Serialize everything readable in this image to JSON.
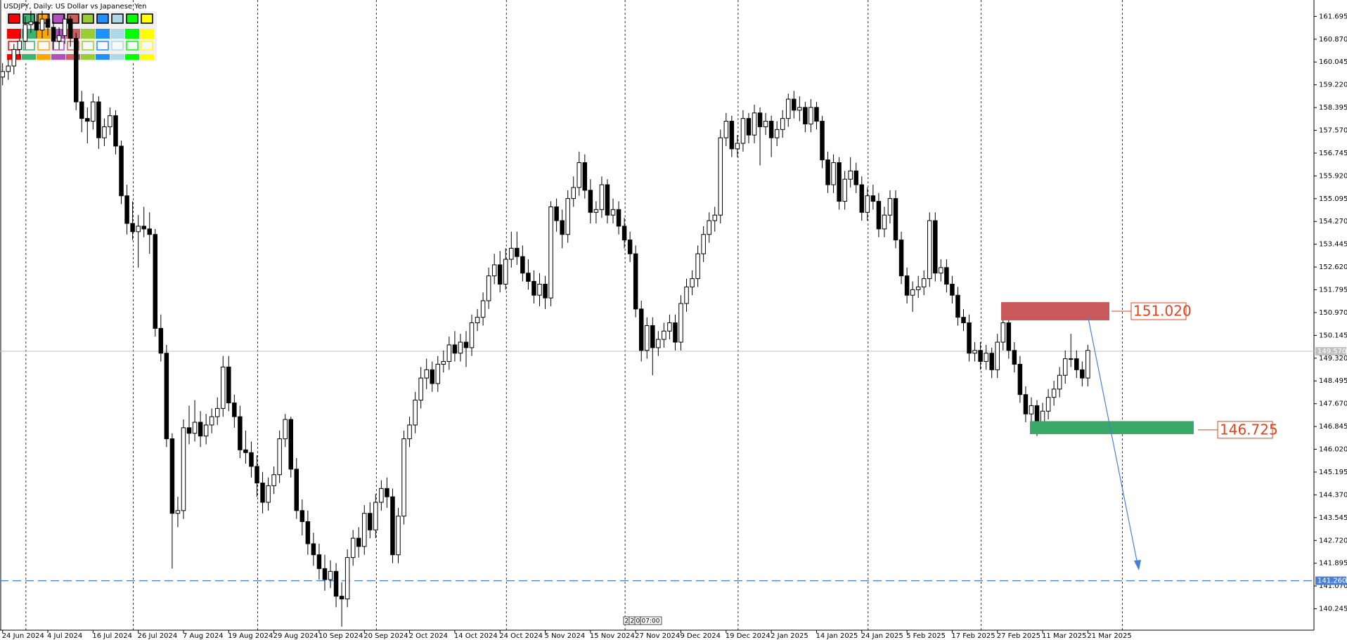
{
  "chart_data": {
    "type": "candlestick",
    "title": "USDJPY, Daily:  US Dollar vs Japanese Yen",
    "up_color": "#ffffff",
    "down_color": "#000000",
    "outline_color": "#000000",
    "ylim": [
      139.47,
      162.29
    ],
    "yticks": [
      161.695,
      {
        "value": 160.87,
        "label": "160.870"
      },
      160.045,
      {
        "value": 159.22,
        "label": "159.220"
      },
      158.395,
      {
        "value": 157.57,
        "label": "157.570"
      },
      156.745,
      {
        "value": 155.92,
        "label": "155.920"
      },
      155.095,
      {
        "value": 154.27,
        "label": "154.270"
      },
      153.445,
      {
        "value": 152.62,
        "label": "152.620"
      },
      151.795,
      {
        "value": 150.97,
        "label": "150.970"
      },
      150.145,
      {
        "value": 149.32,
        "label": "149.320"
      },
      148.495,
      {
        "value": 147.67,
        "label": "147.670"
      },
      146.845,
      {
        "value": 146.02,
        "label": "146.020"
      },
      145.195,
      {
        "value": 144.37,
        "label": "144.370"
      },
      143.545,
      {
        "value": 142.72,
        "label": "142.720"
      },
      141.895,
      {
        "value": 141.07,
        "label": "141.070"
      },
      140.245
    ],
    "categories": [
      "24 Jun 2024",
      null,
      null,
      null,
      null,
      null,
      null,
      null,
      "4 Jul 2024",
      null,
      null,
      null,
      null,
      null,
      null,
      null,
      "16 Jul 2024",
      null,
      null,
      null,
      null,
      null,
      null,
      null,
      "26 Jul 2024",
      null,
      null,
      null,
      null,
      null,
      null,
      null,
      "7 Aug 2024",
      null,
      null,
      null,
      null,
      null,
      null,
      null,
      "19 Aug 2024",
      null,
      null,
      null,
      null,
      null,
      null,
      null,
      "29 Aug 2024",
      null,
      null,
      null,
      null,
      null,
      null,
      null,
      "10 Sep 2024",
      null,
      null,
      null,
      null,
      null,
      null,
      null,
      "20 Sep 2024",
      null,
      null,
      null,
      null,
      null,
      null,
      null,
      "2 Oct 2024",
      null,
      null,
      null,
      null,
      null,
      null,
      null,
      "14 Oct 2024",
      null,
      null,
      null,
      null,
      null,
      null,
      null,
      "24 Oct 2024",
      null,
      null,
      null,
      null,
      null,
      null,
      null,
      "5 Nov 2024",
      null,
      null,
      null,
      null,
      null,
      null,
      null,
      "15 Nov 2024",
      null,
      null,
      null,
      null,
      null,
      null,
      null,
      "27 Nov 2024",
      null,
      null,
      null,
      null,
      null,
      null,
      null,
      "9 Dec 2024",
      null,
      null,
      null,
      null,
      null,
      null,
      null,
      "19 Dec 2024",
      null,
      null,
      null,
      null,
      null,
      null,
      null,
      "2 Jan 2025",
      null,
      null,
      null,
      null,
      null,
      null,
      null,
      "14 Jan 2025",
      null,
      null,
      null,
      null,
      null,
      null,
      null,
      "24 Jan 2025",
      null,
      null,
      null,
      null,
      null,
      null,
      null,
      "5 Feb 2025",
      null,
      null,
      null,
      null,
      null,
      null,
      null,
      "17 Feb 2025",
      null,
      null,
      null,
      null,
      null,
      null,
      null,
      "27 Feb 2025",
      null,
      null,
      null,
      null,
      null,
      null,
      null,
      "11 Mar 2025",
      null,
      null,
      null,
      null,
      null,
      null,
      null,
      "21 Mar 2025"
    ],
    "ohlc": [
      [
        159.5,
        160.0,
        159.2,
        159.7
      ],
      [
        159.7,
        160.2,
        159.4,
        159.9
      ],
      [
        159.9,
        160.7,
        159.6,
        160.5
      ],
      [
        160.5,
        161.1,
        160.2,
        160.8
      ],
      [
        160.8,
        161.7,
        160.5,
        161.4
      ],
      [
        161.4,
        161.9,
        161.1,
        161.5
      ],
      [
        161.5,
        161.8,
        160.9,
        161.2
      ],
      [
        161.2,
        161.9,
        160.9,
        161.6
      ],
      [
        161.6,
        161.8,
        161.0,
        161.3
      ],
      [
        161.3,
        161.5,
        160.5,
        160.8
      ],
      [
        160.8,
        161.3,
        160.5,
        161.0
      ],
      [
        161.0,
        161.8,
        160.7,
        161.6
      ],
      [
        161.6,
        161.7,
        160.6,
        160.9
      ],
      [
        160.9,
        161.1,
        158.3,
        158.6
      ],
      [
        158.6,
        159.0,
        157.5,
        158.0
      ],
      [
        158.0,
        158.4,
        157.1,
        157.9
      ],
      [
        157.9,
        158.9,
        157.6,
        158.6
      ],
      [
        158.6,
        158.8,
        156.9,
        157.3
      ],
      [
        157.3,
        158.0,
        157.0,
        157.7
      ],
      [
        157.7,
        158.4,
        157.4,
        158.1
      ],
      [
        158.1,
        158.3,
        156.7,
        157.0
      ],
      [
        157.0,
        157.2,
        154.9,
        155.2
      ],
      [
        155.2,
        155.6,
        153.8,
        154.2
      ],
      [
        154.2,
        155.0,
        153.6,
        153.9
      ],
      [
        153.9,
        154.5,
        152.6,
        154.1
      ],
      [
        154.1,
        154.8,
        153.7,
        154.0
      ],
      [
        154.0,
        154.6,
        153.1,
        153.8
      ],
      [
        153.8,
        154.0,
        150.1,
        150.4
      ],
      [
        150.4,
        150.9,
        149.2,
        149.5
      ],
      [
        149.5,
        149.8,
        146.1,
        146.4
      ],
      [
        146.4,
        146.6,
        141.7,
        143.7
      ],
      [
        143.7,
        144.3,
        143.2,
        143.8
      ],
      [
        143.8,
        147.1,
        143.5,
        146.8
      ],
      [
        146.8,
        147.6,
        146.2,
        146.6
      ],
      [
        146.6,
        147.8,
        146.3,
        147.0
      ],
      [
        147.0,
        147.4,
        146.1,
        146.5
      ],
      [
        146.5,
        147.3,
        146.2,
        146.9
      ],
      [
        146.9,
        147.5,
        146.6,
        147.2
      ],
      [
        147.2,
        147.9,
        146.9,
        147.5
      ],
      [
        147.5,
        149.4,
        147.2,
        149.0
      ],
      [
        149.0,
        149.4,
        147.4,
        147.7
      ],
      [
        147.7,
        148.0,
        146.8,
        147.2
      ],
      [
        147.2,
        147.6,
        145.7,
        146.0
      ],
      [
        146.0,
        146.7,
        145.5,
        145.9
      ],
      [
        145.9,
        146.3,
        145.0,
        145.4
      ],
      [
        145.4,
        145.8,
        144.3,
        144.8
      ],
      [
        144.8,
        145.2,
        143.7,
        144.1
      ],
      [
        144.1,
        145.0,
        143.8,
        144.7
      ],
      [
        144.7,
        145.4,
        144.4,
        145.1
      ],
      [
        145.1,
        146.7,
        144.8,
        146.4
      ],
      [
        146.4,
        147.3,
        146.1,
        147.1
      ],
      [
        147.1,
        147.2,
        145.0,
        145.3
      ],
      [
        145.3,
        145.7,
        143.5,
        143.8
      ],
      [
        143.8,
        144.2,
        142.9,
        143.4
      ],
      [
        143.4,
        143.8,
        142.2,
        142.6
      ],
      [
        142.6,
        143.0,
        141.8,
        142.2
      ],
      [
        142.2,
        142.6,
        141.3,
        141.7
      ],
      [
        141.7,
        142.2,
        140.9,
        141.3
      ],
      [
        141.3,
        142.0,
        141.0,
        141.6
      ],
      [
        141.6,
        141.9,
        140.3,
        140.7
      ],
      [
        140.7,
        141.2,
        139.6,
        140.6
      ],
      [
        140.6,
        142.4,
        140.3,
        142.1
      ],
      [
        142.1,
        143.1,
        141.8,
        142.8
      ],
      [
        142.8,
        143.2,
        142.1,
        142.5
      ],
      [
        142.5,
        144.0,
        142.2,
        143.7
      ],
      [
        143.7,
        144.1,
        142.8,
        143.1
      ],
      [
        143.1,
        144.4,
        142.8,
        144.1
      ],
      [
        144.1,
        144.9,
        143.8,
        144.6
      ],
      [
        144.6,
        145.0,
        143.9,
        144.3
      ],
      [
        144.3,
        144.6,
        141.9,
        142.2
      ],
      [
        142.2,
        143.9,
        141.9,
        143.6
      ],
      [
        143.6,
        146.7,
        143.3,
        146.4
      ],
      [
        146.4,
        147.2,
        146.1,
        146.9
      ],
      [
        146.9,
        148.1,
        146.6,
        147.8
      ],
      [
        147.8,
        149.0,
        147.5,
        148.6
      ],
      [
        148.6,
        149.3,
        148.2,
        148.9
      ],
      [
        148.9,
        149.2,
        148.1,
        148.4
      ],
      [
        148.4,
        149.4,
        148.1,
        149.1
      ],
      [
        149.1,
        149.6,
        148.8,
        149.2
      ],
      [
        149.2,
        150.1,
        148.9,
        149.8
      ],
      [
        149.8,
        150.3,
        149.2,
        149.5
      ],
      [
        149.5,
        150.2,
        149.2,
        149.9
      ],
      [
        149.9,
        150.3,
        149.0,
        149.7
      ],
      [
        149.7,
        150.9,
        149.4,
        150.6
      ],
      [
        150.6,
        151.1,
        150.3,
        150.8
      ],
      [
        150.8,
        151.7,
        150.5,
        151.4
      ],
      [
        151.4,
        152.6,
        151.1,
        152.3
      ],
      [
        152.3,
        153.1,
        152.0,
        152.7
      ],
      [
        152.7,
        153.2,
        151.7,
        152.0
      ],
      [
        152.0,
        153.3,
        151.8,
        152.9
      ],
      [
        152.9,
        153.9,
        152.6,
        153.3
      ],
      [
        153.3,
        153.9,
        152.7,
        153.0
      ],
      [
        153.0,
        153.4,
        152.1,
        152.4
      ],
      [
        152.4,
        152.9,
        151.8,
        152.1
      ],
      [
        152.1,
        152.5,
        151.3,
        151.6
      ],
      [
        151.6,
        152.4,
        151.2,
        152.0
      ],
      [
        152.0,
        152.3,
        151.1,
        151.5
      ],
      [
        151.5,
        155.0,
        151.2,
        154.8
      ],
      [
        154.8,
        155.1,
        153.9,
        154.3
      ],
      [
        154.3,
        154.7,
        153.3,
        153.8
      ],
      [
        153.8,
        155.4,
        153.5,
        155.1
      ],
      [
        155.1,
        155.9,
        154.8,
        155.5
      ],
      [
        155.5,
        156.8,
        155.2,
        156.4
      ],
      [
        156.4,
        156.7,
        155.1,
        155.4
      ],
      [
        155.4,
        155.8,
        154.2,
        154.6
      ],
      [
        154.6,
        155.0,
        154.2,
        154.7
      ],
      [
        154.7,
        155.9,
        154.4,
        155.6
      ],
      [
        155.6,
        155.8,
        154.2,
        154.5
      ],
      [
        154.5,
        155.1,
        154.2,
        154.7
      ],
      [
        154.7,
        155.0,
        153.8,
        154.1
      ],
      [
        154.1,
        154.4,
        153.3,
        153.6
      ],
      [
        153.6,
        153.9,
        152.8,
        153.1
      ],
      [
        153.1,
        153.4,
        150.8,
        151.1
      ],
      [
        151.1,
        151.4,
        149.2,
        149.6
      ],
      [
        149.6,
        150.8,
        149.3,
        150.5
      ],
      [
        150.5,
        150.8,
        148.7,
        149.7
      ],
      [
        149.7,
        150.3,
        149.4,
        150.0
      ],
      [
        150.0,
        150.6,
        149.7,
        150.3
      ],
      [
        150.3,
        150.9,
        150.0,
        150.6
      ],
      [
        150.6,
        150.9,
        149.6,
        149.9
      ],
      [
        149.9,
        151.6,
        149.6,
        151.3
      ],
      [
        151.3,
        152.2,
        151.0,
        151.9
      ],
      [
        151.9,
        152.5,
        151.6,
        152.2
      ],
      [
        152.2,
        153.4,
        151.9,
        153.1
      ],
      [
        153.1,
        154.1,
        152.8,
        153.8
      ],
      [
        153.8,
        154.6,
        153.5,
        154.3
      ],
      [
        154.3,
        154.8,
        153.9,
        154.5
      ],
      [
        154.5,
        157.6,
        154.2,
        157.3
      ],
      [
        157.3,
        158.2,
        157.0,
        157.9
      ],
      [
        157.9,
        158.1,
        156.6,
        156.9
      ],
      [
        156.9,
        157.4,
        156.6,
        157.1
      ],
      [
        157.1,
        158.3,
        156.8,
        158.0
      ],
      [
        158.0,
        158.2,
        157.1,
        157.4
      ],
      [
        157.4,
        158.5,
        157.1,
        158.2
      ],
      [
        158.2,
        158.4,
        156.3,
        157.7
      ],
      [
        157.7,
        158.2,
        157.4,
        157.9
      ],
      [
        157.9,
        158.1,
        156.6,
        157.3
      ],
      [
        157.3,
        157.9,
        157.0,
        157.6
      ],
      [
        157.6,
        158.3,
        157.3,
        158.0
      ],
      [
        158.0,
        158.9,
        157.7,
        158.7
      ],
      [
        158.7,
        159.0,
        158.0,
        158.3
      ],
      [
        158.3,
        158.8,
        157.9,
        158.4
      ],
      [
        158.4,
        158.6,
        157.5,
        157.8
      ],
      [
        157.8,
        158.7,
        157.5,
        158.4
      ],
      [
        158.4,
        158.6,
        157.6,
        157.9
      ],
      [
        157.9,
        158.1,
        156.2,
        156.5
      ],
      [
        156.5,
        156.8,
        155.3,
        155.6
      ],
      [
        155.6,
        156.7,
        155.3,
        156.4
      ],
      [
        156.4,
        156.6,
        154.7,
        155.0
      ],
      [
        155.0,
        156.1,
        154.7,
        155.8
      ],
      [
        155.8,
        156.6,
        155.5,
        156.1
      ],
      [
        156.1,
        156.4,
        155.3,
        155.6
      ],
      [
        155.6,
        155.9,
        154.3,
        154.6
      ],
      [
        154.6,
        155.5,
        154.3,
        155.2
      ],
      [
        155.2,
        155.6,
        154.7,
        155.0
      ],
      [
        155.0,
        155.3,
        153.7,
        154.0
      ],
      [
        154.0,
        154.8,
        153.7,
        154.5
      ],
      [
        154.5,
        155.4,
        154.2,
        155.1
      ],
      [
        155.1,
        155.4,
        153.3,
        153.6
      ],
      [
        153.6,
        153.9,
        152.0,
        152.3
      ],
      [
        152.3,
        152.6,
        151.3,
        151.6
      ],
      [
        151.6,
        152.1,
        151.0,
        151.8
      ],
      [
        151.8,
        152.3,
        151.5,
        151.9
      ],
      [
        151.9,
        152.5,
        151.6,
        152.2
      ],
      [
        152.2,
        154.6,
        151.9,
        154.3
      ],
      [
        154.3,
        154.6,
        152.1,
        152.4
      ],
      [
        152.4,
        152.9,
        152.1,
        152.6
      ],
      [
        152.6,
        152.9,
        151.7,
        152.0
      ],
      [
        152.0,
        152.3,
        151.3,
        151.6
      ],
      [
        151.6,
        151.9,
        150.5,
        150.8
      ],
      [
        150.8,
        151.1,
        150.3,
        150.6
      ],
      [
        150.6,
        150.9,
        149.2,
        149.5
      ],
      [
        149.5,
        149.9,
        149.2,
        149.6
      ],
      [
        149.6,
        149.9,
        148.9,
        149.2
      ],
      [
        149.2,
        149.8,
        148.9,
        149.5
      ],
      [
        149.5,
        149.7,
        148.6,
        148.9
      ],
      [
        148.9,
        150.2,
        148.6,
        149.9
      ],
      [
        149.9,
        151.3,
        149.6,
        150.6
      ],
      [
        150.6,
        150.9,
        149.3,
        149.6
      ],
      [
        149.6,
        149.9,
        148.8,
        149.1
      ],
      [
        149.1,
        149.4,
        147.7,
        148.0
      ],
      [
        148.0,
        148.3,
        147.0,
        147.3
      ],
      [
        147.3,
        147.9,
        146.9,
        147.6
      ],
      [
        147.6,
        147.8,
        146.5,
        146.9
      ],
      [
        146.9,
        147.7,
        146.6,
        147.4
      ],
      [
        147.4,
        148.2,
        147.1,
        147.9
      ],
      [
        147.9,
        148.5,
        147.6,
        148.2
      ],
      [
        148.2,
        149.0,
        147.9,
        148.7
      ],
      [
        148.7,
        149.6,
        148.4,
        149.3
      ],
      [
        149.3,
        150.2,
        149.0,
        149.3
      ],
      [
        149.3,
        149.6,
        148.6,
        148.9
      ],
      [
        148.9,
        149.2,
        148.3,
        148.6
      ],
      [
        148.6,
        149.8,
        148.3,
        149.6
      ]
    ],
    "zones": [
      {
        "value": 151.02,
        "label": "151.020",
        "high": 151.35,
        "low": 150.69,
        "color": "#c9595a",
        "label_color": "#e0451f"
      },
      {
        "value": 146.725,
        "label": "146.725",
        "high": 147.04,
        "low": 146.57,
        "color": "#3aa866",
        "label_color": "#e0451f"
      }
    ],
    "levels": [
      {
        "value": 149.57,
        "label": "149.570",
        "color": "#c0c0c0",
        "dashed": false
      },
      {
        "value": 141.26,
        "label": "141.260",
        "color": "#4a7fd9",
        "dashed": true
      }
    ],
    "cursor_time": [
      "2",
      "2",
      "0",
      "07:00"
    ]
  }
}
